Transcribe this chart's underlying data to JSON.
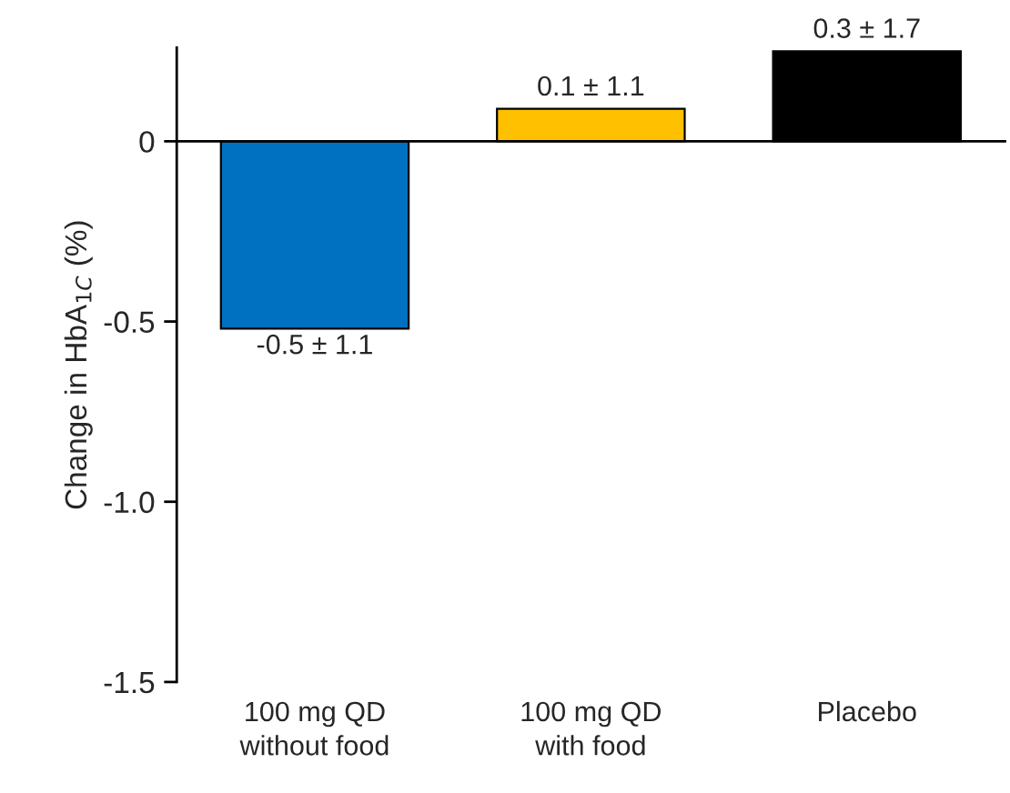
{
  "chart_data": {
    "type": "bar",
    "ylabel": "Change in HbA$_{1C}$ (%)",
    "categories": [
      "100 mg QD\nwithout food",
      "100 mg QD\nwith food",
      "Placebo"
    ],
    "values": [
      -0.52,
      0.09,
      0.25
    ],
    "colors": [
      "#0070c0",
      "#ffc000",
      "#000000"
    ],
    "value_labels": [
      "-0.5 ± 1.1",
      "0.1 ± 1.1",
      "0.3 ± 1.7"
    ],
    "ylim": [
      -1.5,
      0.26
    ],
    "yticks": [
      0,
      {
        "value": -0.5,
        "label": "-0.5"
      },
      {
        "value": -1.0,
        "label": "-1.0"
      },
      {
        "value": -1.5,
        "label": "-1.5"
      }
    ]
  }
}
